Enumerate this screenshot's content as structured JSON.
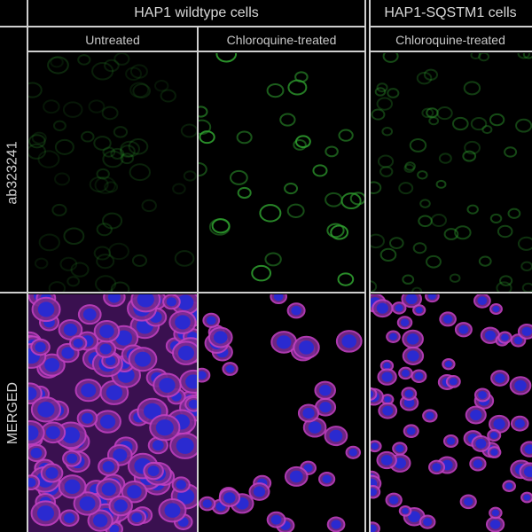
{
  "headers": {
    "group_1": "HAP1 wildtype cells",
    "group_2": "HAP1-SQSTM1 cells"
  },
  "columns": [
    "Untreated",
    "Chloroquine-treated",
    "Chloroquine-treated"
  ],
  "rows": [
    "ab323241",
    "MERGED"
  ],
  "colors": {
    "green_channel": "#2fa02f",
    "magenta_channel": "#c040c0",
    "blue_nuclei": "#2a2ad0",
    "divider": "#cfcfcf"
  }
}
